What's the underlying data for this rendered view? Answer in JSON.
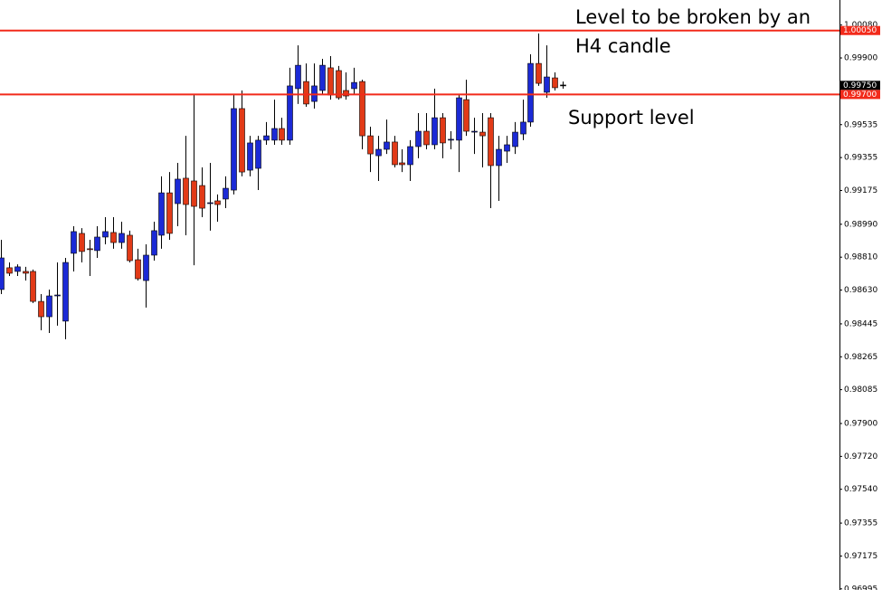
{
  "chart_data": {
    "type": "candlestick",
    "open": [
      0.98633,
      0.98752,
      0.98732,
      0.98732,
      0.98732,
      0.98568,
      0.98484,
      0.98598,
      0.9846,
      0.98831,
      0.9894,
      0.98856,
      0.98846,
      0.9892,
      0.98945,
      0.9889,
      0.9893,
      0.98796,
      0.98682,
      0.98821,
      0.9893,
      0.99162,
      0.99103,
      0.99242,
      0.99227,
      0.99202,
      0.99103,
      0.99118,
      0.99128,
      0.99177,
      0.99623,
      0.99286,
      0.99296,
      0.9945,
      0.9945,
      0.99514,
      0.9945,
      0.99732,
      0.99771,
      0.99662,
      0.99722,
      0.99846,
      0.99831,
      0.99722,
      0.99732,
      0.99771,
      0.99474,
      0.99365,
      0.994,
      0.9944,
      0.99326,
      0.99316,
      0.99415,
      0.99499,
      0.99425,
      0.99573,
      0.9945,
      0.9945,
      0.99672,
      0.99494,
      0.99494,
      0.99573,
      0.99311,
      0.9939,
      0.99415,
      0.99484,
      0.99549,
      0.9987,
      0.99712,
      0.99791,
      0.99752
    ],
    "high": [
      0.98905,
      0.98781,
      0.98771,
      0.98757,
      0.98742,
      0.98608,
      0.98633,
      0.98781,
      0.98806,
      0.98979,
      0.98969,
      0.98905,
      0.98979,
      0.99029,
      0.99029,
      0.99004,
      0.98955,
      0.98856,
      0.9888,
      0.99004,
      0.99252,
      0.99276,
      0.99326,
      0.99474,
      0.99697,
      0.99301,
      0.99326,
      0.99153,
      0.99252,
      0.99697,
      0.99722,
      0.99474,
      0.99474,
      0.99549,
      0.99672,
      0.99573,
      0.99846,
      0.99969,
      0.9987,
      0.9987,
      0.99895,
      0.9991,
      0.99856,
      0.99821,
      0.99846,
      0.99781,
      0.99524,
      0.99474,
      0.99563,
      0.99474,
      0.994,
      0.9945,
      0.99598,
      0.99598,
      0.99732,
      0.99598,
      0.99499,
      0.99697,
      0.99781,
      0.99573,
      0.99598,
      0.99598,
      0.99474,
      0.99474,
      0.99549,
      0.99672,
      0.9992,
      1.00034,
      0.99969,
      0.99821,
      0.99771
    ],
    "low": [
      0.98608,
      0.98707,
      0.98707,
      0.98682,
      0.98559,
      0.9841,
      0.98395,
      0.98435,
      0.98361,
      0.98732,
      0.98781,
      0.98707,
      0.98806,
      0.9888,
      0.98856,
      0.98856,
      0.98781,
      0.98682,
      0.98534,
      0.98791,
      0.98856,
      0.98905,
      0.98979,
      0.9893,
      0.98766,
      0.99029,
      0.98955,
      0.99004,
      0.99078,
      0.99153,
      0.99252,
      0.99252,
      0.99177,
      0.99425,
      0.99425,
      0.99425,
      0.99425,
      0.99648,
      0.99633,
      0.99623,
      0.99697,
      0.99672,
      0.99672,
      0.99672,
      0.99697,
      0.994,
      0.99276,
      0.99227,
      0.99375,
      0.99301,
      0.99276,
      0.99227,
      0.99351,
      0.994,
      0.994,
      0.99351,
      0.994,
      0.99276,
      0.99474,
      0.99375,
      0.99301,
      0.99078,
      0.99118,
      0.99326,
      0.99375,
      0.9945,
      0.99524,
      0.99747,
      0.99682,
      0.99722,
      0.99732
    ],
    "close": [
      0.98806,
      0.98722,
      0.98757,
      0.98722,
      0.98568,
      0.98484,
      0.98598,
      0.98603,
      0.98781,
      0.9895,
      0.98841,
      0.98851,
      0.9892,
      0.9895,
      0.9889,
      0.9894,
      0.98791,
      0.98692,
      0.98821,
      0.98955,
      0.99162,
      0.9894,
      0.99237,
      0.99098,
      0.99088,
      0.99078,
      0.99108,
      0.99098,
      0.99187,
      0.99623,
      0.99276,
      0.99435,
      0.9945,
      0.99474,
      0.99514,
      0.9945,
      0.99747,
      0.9986,
      0.99648,
      0.99747,
      0.9986,
      0.99697,
      0.99682,
      0.99692,
      0.99766,
      0.99474,
      0.99375,
      0.994,
      0.9944,
      0.99316,
      0.99316,
      0.99415,
      0.99499,
      0.99425,
      0.99573,
      0.99435,
      0.99455,
      0.99682,
      0.99499,
      0.99499,
      0.99474,
      0.99311,
      0.994,
      0.99425,
      0.99494,
      0.99549,
      0.9987,
      0.99761,
      0.99796,
      0.99737,
      0.99752
    ],
    "up_color": "#1b2ad6",
    "down_color": "#e23a17",
    "ylim": [
      0.96989,
      1.00217
    ],
    "yticks": [
      {
        "value": 1.0008,
        "label": "1.00080"
      },
      {
        "value": 0.999,
        "label": "0.99900"
      },
      {
        "value": 0.99535,
        "label": "0.99535"
      },
      {
        "value": 0.99355,
        "label": "0.99355"
      },
      {
        "value": 0.99175,
        "label": "0.99175"
      },
      {
        "value": 0.9899,
        "label": "0.98990"
      },
      {
        "value": 0.9881,
        "label": "0.98810"
      },
      {
        "value": 0.9863,
        "label": "0.98630"
      },
      {
        "value": 0.98445,
        "label": "0.98445"
      },
      {
        "value": 0.98265,
        "label": "0.98265"
      },
      {
        "value": 0.98085,
        "label": "0.98085"
      },
      {
        "value": 0.979,
        "label": "0.97900"
      },
      {
        "value": 0.9772,
        "label": "0.97720"
      },
      {
        "value": 0.9754,
        "label": "0.97540"
      },
      {
        "value": 0.97355,
        "label": "0.97355"
      },
      {
        "value": 0.97175,
        "label": "0.97175"
      },
      {
        "value": 0.96995,
        "label": "0.96995"
      }
    ],
    "levels": [
      {
        "value": 1.0005,
        "label": "1.00050"
      },
      {
        "value": 0.997,
        "label": "0.99700"
      }
    ],
    "level_color": "#f22a1a",
    "current_price": {
      "value": 0.9975,
      "label": "0.99750"
    },
    "annotations": [
      "Level to be broken by an",
      "H4 candle",
      "Support level"
    ]
  }
}
